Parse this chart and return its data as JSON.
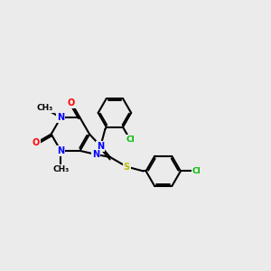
{
  "background_color": "#ebebeb",
  "atom_colors": {
    "C": "#000000",
    "N": "#0000ff",
    "O": "#ff0000",
    "S": "#bbbb00",
    "Cl": "#00bb00",
    "H": "#000000"
  },
  "figsize": [
    3.0,
    3.0
  ],
  "dpi": 100,
  "bond_lw": 1.5,
  "font_size": 7.0
}
